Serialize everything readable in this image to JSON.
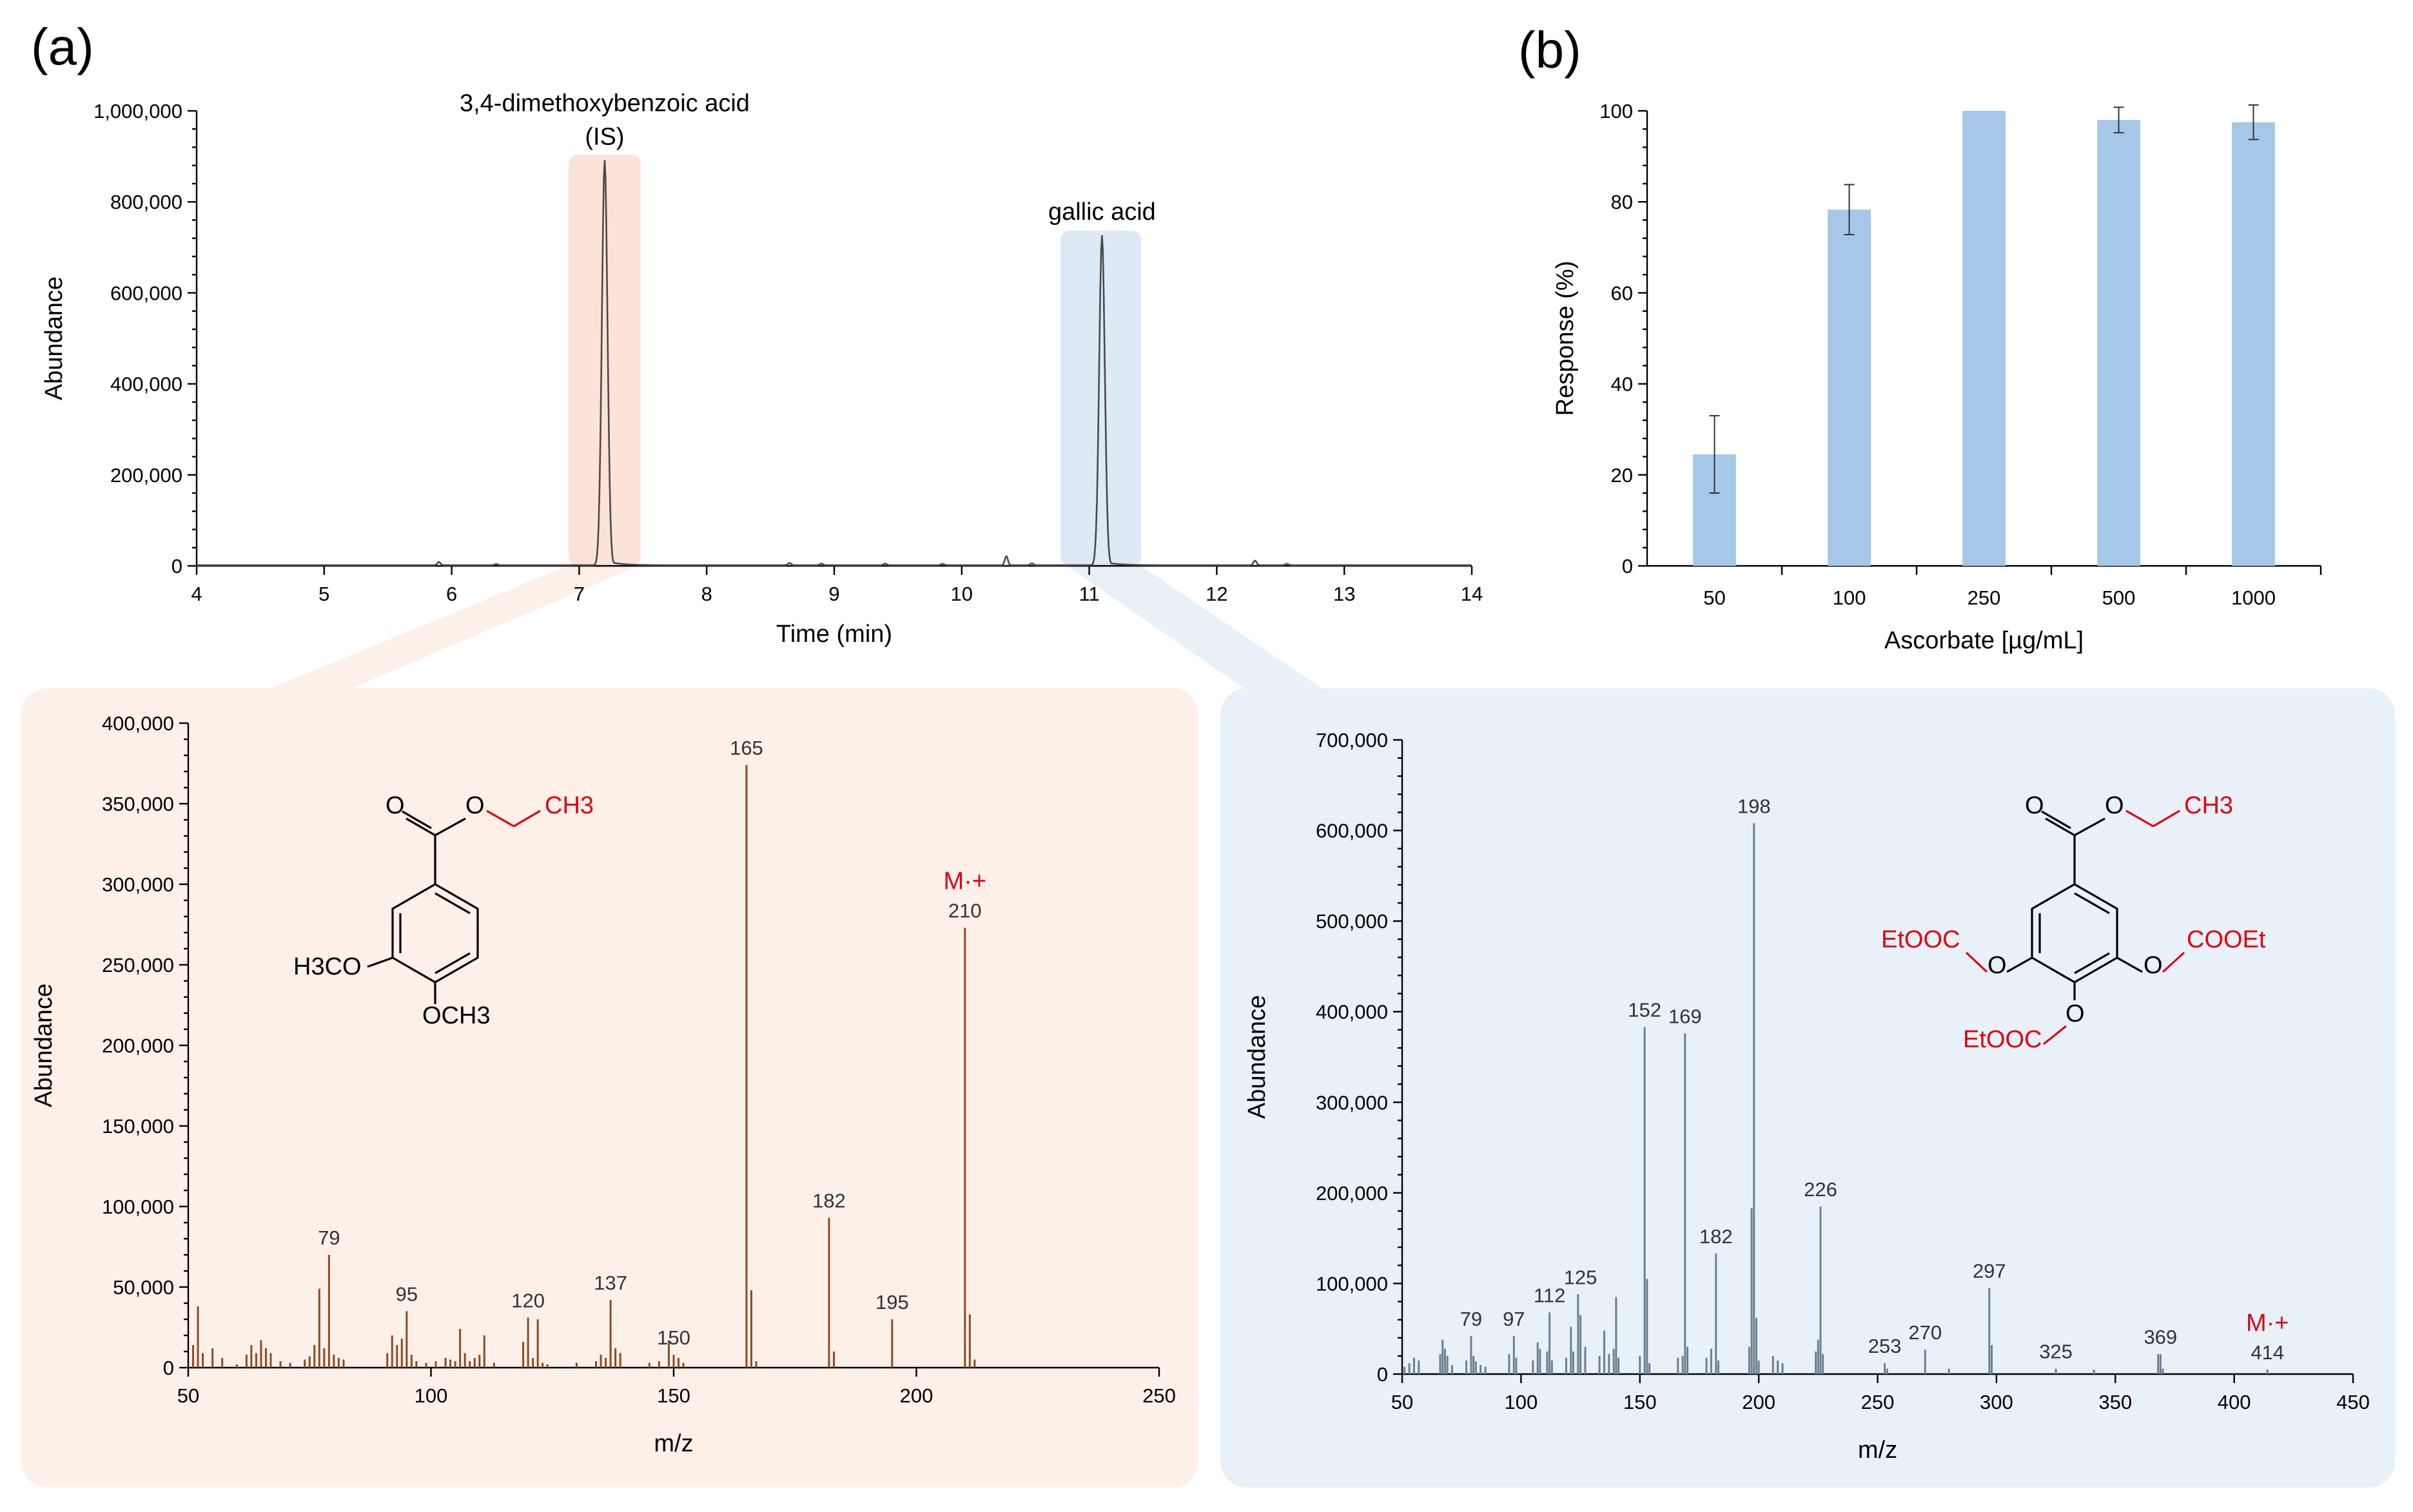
{
  "colors": {
    "ms_left_bg": "#fdf0e9",
    "ms_right_bg": "#e8f0f8",
    "is_highlight": "#fbe3d8",
    "ga_highlight": "#ddeaf6",
    "chromatogram": "#4a4a4a",
    "ms_left_bars": "#8c4a22",
    "ms_right_bars": "#6b8090",
    "bar_b": "#a6c8e8",
    "red": "#e0000f"
  },
  "panel_labels": {
    "a": "(a)",
    "b": "(b)"
  },
  "chart_data": [
    {
      "id": "chromatogram",
      "type": "line",
      "xlabel": "Time (min)",
      "ylabel": "Abundance",
      "xlim": [
        4,
        14
      ],
      "ylim": [
        0,
        1000000
      ],
      "xticks": [
        "4",
        "5",
        "6",
        "7",
        "8",
        "9",
        "10",
        "11",
        "12",
        "13",
        "14"
      ],
      "yticks": [
        "0",
        "200,000",
        "400,000",
        "600,000",
        "800,000",
        "1,000,000"
      ],
      "grid": false,
      "peaks": [
        {
          "x": 7.2,
          "y": 890000,
          "label_lines": [
            "3,4-dimethoxybenzoic acid",
            "(IS)"
          ]
        },
        {
          "x": 11.1,
          "y": 725000,
          "label_lines": [
            "gallic acid"
          ]
        }
      ],
      "baseline_noise": [
        [
          5.9,
          7000
        ],
        [
          6.35,
          2500
        ],
        [
          8.65,
          5000
        ],
        [
          8.9,
          3500
        ],
        [
          9.4,
          3500
        ],
        [
          9.85,
          3000
        ],
        [
          10.35,
          20000
        ],
        [
          10.55,
          4000
        ],
        [
          12.3,
          10000
        ],
        [
          12.55,
          3000
        ]
      ]
    },
    {
      "id": "response",
      "type": "bar",
      "xlabel": "Ascorbate [µg/mL]",
      "ylabel": "Response (%)",
      "categories": [
        "50",
        "100",
        "250",
        "500",
        "1000"
      ],
      "values": [
        24.5,
        78.3,
        100,
        98,
        97.5
      ],
      "errors": [
        8.5,
        5.5,
        0,
        2.8,
        3.8
      ],
      "ylim": [
        0,
        100
      ],
      "yticks": [
        "0",
        "20",
        "40",
        "60",
        "80",
        "100"
      ],
      "grid": false
    },
    {
      "id": "ms_is",
      "type": "bar",
      "xlabel": "m/z",
      "ylabel": "Abundance",
      "xlim": [
        50,
        250
      ],
      "ylim": [
        0,
        400000
      ],
      "xticks": [
        "50",
        "100",
        "150",
        "200",
        "250"
      ],
      "yticks": [
        "0",
        "50,000",
        "100,000",
        "150,000",
        "200,000",
        "250,000",
        "300,000",
        "350,000",
        "400,000"
      ],
      "grid": false,
      "peaks": [
        [
          51,
          14000
        ],
        [
          52,
          38000
        ],
        [
          53,
          9000
        ],
        [
          55,
          12000
        ],
        [
          57,
          6000
        ],
        [
          60,
          2000
        ],
        [
          62,
          8000
        ],
        [
          63,
          14000
        ],
        [
          64,
          9000
        ],
        [
          65,
          17000
        ],
        [
          66,
          12000
        ],
        [
          67,
          9000
        ],
        [
          69,
          4000
        ],
        [
          71,
          3000
        ],
        [
          74,
          5000
        ],
        [
          75,
          7000
        ],
        [
          76,
          14000
        ],
        [
          77,
          49000
        ],
        [
          78,
          12000
        ],
        [
          79,
          70000
        ],
        [
          80,
          8000
        ],
        [
          81,
          6000
        ],
        [
          82,
          5000
        ],
        [
          91,
          9000
        ],
        [
          92,
          20000
        ],
        [
          93,
          14000
        ],
        [
          94,
          18000
        ],
        [
          95,
          35000
        ],
        [
          96,
          8000
        ],
        [
          97,
          4000
        ],
        [
          99,
          3000
        ],
        [
          101,
          4000
        ],
        [
          103,
          6000
        ],
        [
          104,
          5000
        ],
        [
          105,
          4000
        ],
        [
          106,
          24000
        ],
        [
          107,
          9000
        ],
        [
          108,
          4000
        ],
        [
          109,
          6000
        ],
        [
          110,
          8000
        ],
        [
          111,
          20000
        ],
        [
          113,
          3000
        ],
        [
          119,
          16000
        ],
        [
          120,
          31000
        ],
        [
          121,
          6000
        ],
        [
          122,
          30000
        ],
        [
          123,
          3000
        ],
        [
          124,
          2000
        ],
        [
          130,
          3000
        ],
        [
          134,
          4000
        ],
        [
          135,
          8000
        ],
        [
          136,
          6000
        ],
        [
          137,
          42000
        ],
        [
          138,
          12000
        ],
        [
          139,
          9000
        ],
        [
          145,
          3000
        ],
        [
          147,
          4000
        ],
        [
          149,
          17000
        ],
        [
          150,
          8000
        ],
        [
          151,
          6000
        ],
        [
          152,
          3000
        ],
        [
          165,
          374000
        ],
        [
          166,
          48000
        ],
        [
          167,
          4000
        ],
        [
          182,
          93000
        ],
        [
          183,
          10000
        ],
        [
          195,
          30000
        ],
        [
          210,
          273000
        ],
        [
          211,
          33000
        ],
        [
          212,
          5000
        ]
      ],
      "labels": [
        {
          "mz": "79",
          "y": 70000
        },
        {
          "mz": "95",
          "y": 35000
        },
        {
          "mz": "120",
          "y": 31000
        },
        {
          "mz": "137",
          "y": 42000
        },
        {
          "mz": "150",
          "y": 8000
        },
        {
          "mz": "165",
          "y": 374000
        },
        {
          "mz": "182",
          "y": 93000
        },
        {
          "mz": "195",
          "y": 30000
        },
        {
          "mz": "210",
          "y": 273000
        }
      ],
      "molecular_ion": {
        "mz": 210,
        "text": "M·+"
      }
    },
    {
      "id": "ms_ga",
      "type": "bar",
      "xlabel": "m/z",
      "ylabel": "Abundance",
      "xlim": [
        50,
        450
      ],
      "ylim": [
        0,
        700000
      ],
      "xticks": [
        "50",
        "100",
        "150",
        "200",
        "250",
        "300",
        "350",
        "400",
        "450"
      ],
      "yticks": [
        "0",
        "100,000",
        "200,000",
        "300,000",
        "400,000",
        "500,000",
        "600,000",
        "700,000"
      ],
      "grid": false,
      "peaks": [
        [
          51,
          8000
        ],
        [
          53,
          12000
        ],
        [
          55,
          18000
        ],
        [
          57,
          15000
        ],
        [
          66,
          22000
        ],
        [
          67,
          38000
        ],
        [
          68,
          28000
        ],
        [
          69,
          20000
        ],
        [
          71,
          10000
        ],
        [
          77,
          15000
        ],
        [
          79,
          42000
        ],
        [
          80,
          20000
        ],
        [
          81,
          14000
        ],
        [
          83,
          10000
        ],
        [
          85,
          8000
        ],
        [
          95,
          22000
        ],
        [
          97,
          42000
        ],
        [
          98,
          18000
        ],
        [
          105,
          15000
        ],
        [
          107,
          35000
        ],
        [
          108,
          28000
        ],
        [
          111,
          25000
        ],
        [
          112,
          68000
        ],
        [
          113,
          15000
        ],
        [
          119,
          18000
        ],
        [
          121,
          52000
        ],
        [
          122,
          25000
        ],
        [
          124,
          88000
        ],
        [
          125,
          65000
        ],
        [
          127,
          30000
        ],
        [
          133,
          20000
        ],
        [
          135,
          48000
        ],
        [
          137,
          22000
        ],
        [
          139,
          28000
        ],
        [
          140,
          85000
        ],
        [
          141,
          18000
        ],
        [
          150,
          20000
        ],
        [
          152,
          383000
        ],
        [
          153,
          105000
        ],
        [
          154,
          12000
        ],
        [
          166,
          18000
        ],
        [
          168,
          20000
        ],
        [
          169,
          376000
        ],
        [
          170,
          30000
        ],
        [
          178,
          18000
        ],
        [
          180,
          28000
        ],
        [
          182,
          133000
        ],
        [
          183,
          15000
        ],
        [
          196,
          30000
        ],
        [
          197,
          183000
        ],
        [
          198,
          608000
        ],
        [
          199,
          62000
        ],
        [
          200,
          15000
        ],
        [
          206,
          20000
        ],
        [
          208,
          15000
        ],
        [
          210,
          12000
        ],
        [
          224,
          25000
        ],
        [
          225,
          38000
        ],
        [
          226,
          185000
        ],
        [
          227,
          22000
        ],
        [
          253,
          12000
        ],
        [
          254,
          6000
        ],
        [
          270,
          27000
        ],
        [
          280,
          6000
        ],
        [
          297,
          95000
        ],
        [
          298,
          32000
        ],
        [
          325,
          6000
        ],
        [
          341,
          5000
        ],
        [
          368,
          22000
        ],
        [
          369,
          22000
        ],
        [
          370,
          6000
        ],
        [
          414,
          5000
        ]
      ],
      "labels": [
        {
          "mz": "79",
          "y": 42000
        },
        {
          "mz": "97",
          "y": 42000
        },
        {
          "mz": "112",
          "y": 68000
        },
        {
          "mz": "125",
          "y": 88000
        },
        {
          "mz": "152",
          "y": 383000
        },
        {
          "mz": "169",
          "y": 376000
        },
        {
          "mz": "182",
          "y": 133000
        },
        {
          "mz": "198",
          "y": 608000
        },
        {
          "mz": "226",
          "y": 185000
        },
        {
          "mz": "253",
          "y": 12000
        },
        {
          "mz": "270",
          "y": 27000
        },
        {
          "mz": "297",
          "y": 95000
        },
        {
          "mz": "325",
          "y": 6000
        },
        {
          "mz": "369",
          "y": 22000
        },
        {
          "mz": "414",
          "y": 5000
        }
      ],
      "molecular_ion": {
        "mz": 414,
        "text": "M·+"
      }
    }
  ],
  "structures": {
    "is": {
      "carbonyl_o": "O",
      "ester_o": "O",
      "ethyl_group": "CH3",
      "meta_group": "H3CO",
      "para_group": "OCH3"
    },
    "ga": {
      "carbonyl_o": "O",
      "ester_o": "O",
      "ethyl_group": "CH3",
      "left_o": "O",
      "right_o": "O",
      "bottom_o": "O",
      "left_group": "EtOOC",
      "right_group": "COOEt",
      "bottom_group": "EtOOC"
    }
  }
}
